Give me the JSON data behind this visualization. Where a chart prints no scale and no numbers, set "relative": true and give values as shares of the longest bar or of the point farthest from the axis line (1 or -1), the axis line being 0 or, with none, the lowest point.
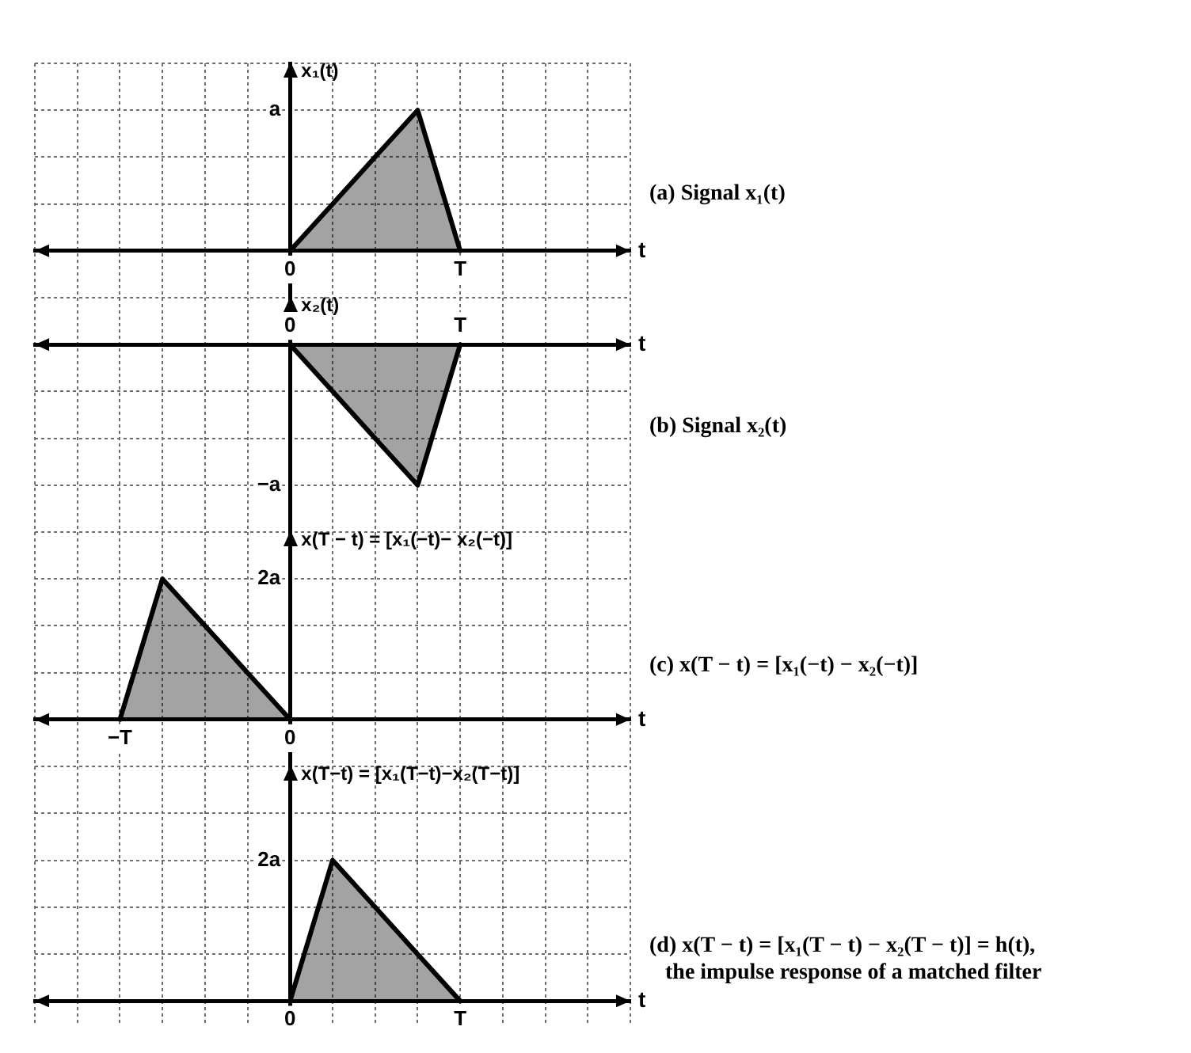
{
  "chart_data": [
    {
      "type": "area",
      "relative": true,
      "categories": [
        null,
        null,
        null,
        null,
        null,
        null,
        "0",
        null,
        null,
        null,
        "T",
        null,
        null,
        null,
        null
      ],
      "values": [
        null,
        null,
        null,
        null,
        null,
        null,
        0,
        0.333,
        0.667,
        1,
        0,
        null,
        null,
        null,
        null
      ],
      "color": "#000000",
      "xlabel": "t",
      "ylabel": "x₁(t)",
      "grid": true,
      "annotations": [
        "a",
        "(a) Signal x₁(t)"
      ]
    },
    {
      "type": "area",
      "relative": true,
      "categories": [
        null,
        null,
        null,
        null,
        null,
        null,
        "0",
        null,
        null,
        null,
        "T",
        null,
        null,
        null,
        null
      ],
      "values": [
        null,
        null,
        null,
        null,
        null,
        null,
        0,
        -0.333,
        -0.667,
        -1,
        0,
        null,
        null,
        null,
        null
      ],
      "color": "#000000",
      "xlabel": "t",
      "ylabel": "x₂(t)",
      "grid": true,
      "annotations": [
        "−a",
        "(b) Signal x₂(t)"
      ]
    },
    {
      "type": "area",
      "relative": true,
      "categories": [
        null,
        null,
        "−T",
        null,
        null,
        null,
        "0",
        null,
        null,
        null,
        null,
        null,
        null,
        null,
        null
      ],
      "values": [
        null,
        null,
        0,
        1,
        0.667,
        0.333,
        0,
        null,
        null,
        null,
        null,
        null,
        null,
        null,
        null
      ],
      "color": "#000000",
      "xlabel": "t",
      "ylabel": "x(T − t) = [x₁(−t)− x₂(−t)]",
      "grid": true,
      "annotations": [
        "2a",
        "(c) x(T − t) = [x₁(−t) − x₂(−t)]"
      ]
    },
    {
      "type": "area",
      "relative": true,
      "categories": [
        null,
        null,
        null,
        null,
        null,
        null,
        "0",
        null,
        null,
        null,
        "T",
        null,
        null,
        null,
        null
      ],
      "values": [
        null,
        null,
        null,
        null,
        null,
        null,
        0,
        1,
        0.667,
        0.333,
        0,
        null,
        null,
        null,
        null
      ],
      "color": "#000000",
      "xlabel": "t",
      "ylabel": "x(T−t) = [x₁(T−t)−x₂(T−t)]",
      "grid": true,
      "annotations": [
        "2a",
        "(d) x(T − t) = [x₁(T − t) − x₂(T − t)] = h(t),",
        "the impulse response of a matched filter"
      ]
    }
  ]
}
